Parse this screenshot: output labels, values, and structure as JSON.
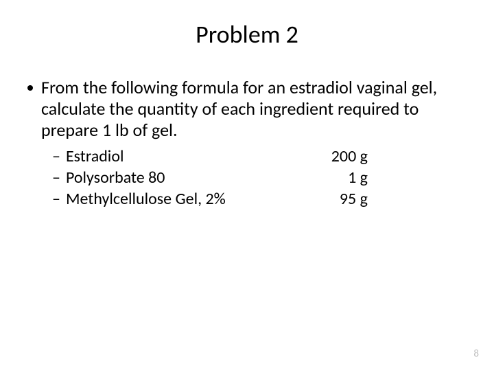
{
  "title": "Problem 2",
  "bullet": "From the following formula for an estradiol vaginal gel, calculate the quantity of each ingredient required to prepare 1 lb of gel.",
  "ingredients": [
    {
      "name": "Estradiol",
      "amount": "200 g"
    },
    {
      "name": "Polysorbate 80",
      "amount": "1 g"
    },
    {
      "name": "Methylcellulose Gel, 2%",
      "amount": "95 g"
    }
  ],
  "pageNumber": "8",
  "colors": {
    "background": "#ffffff",
    "text": "#000000",
    "pageNumber": "#bfbfbf"
  },
  "typography": {
    "title_fontsize": 36,
    "body_fontsize": 26,
    "sub_fontsize": 24,
    "pagenum_fontsize": 15
  }
}
